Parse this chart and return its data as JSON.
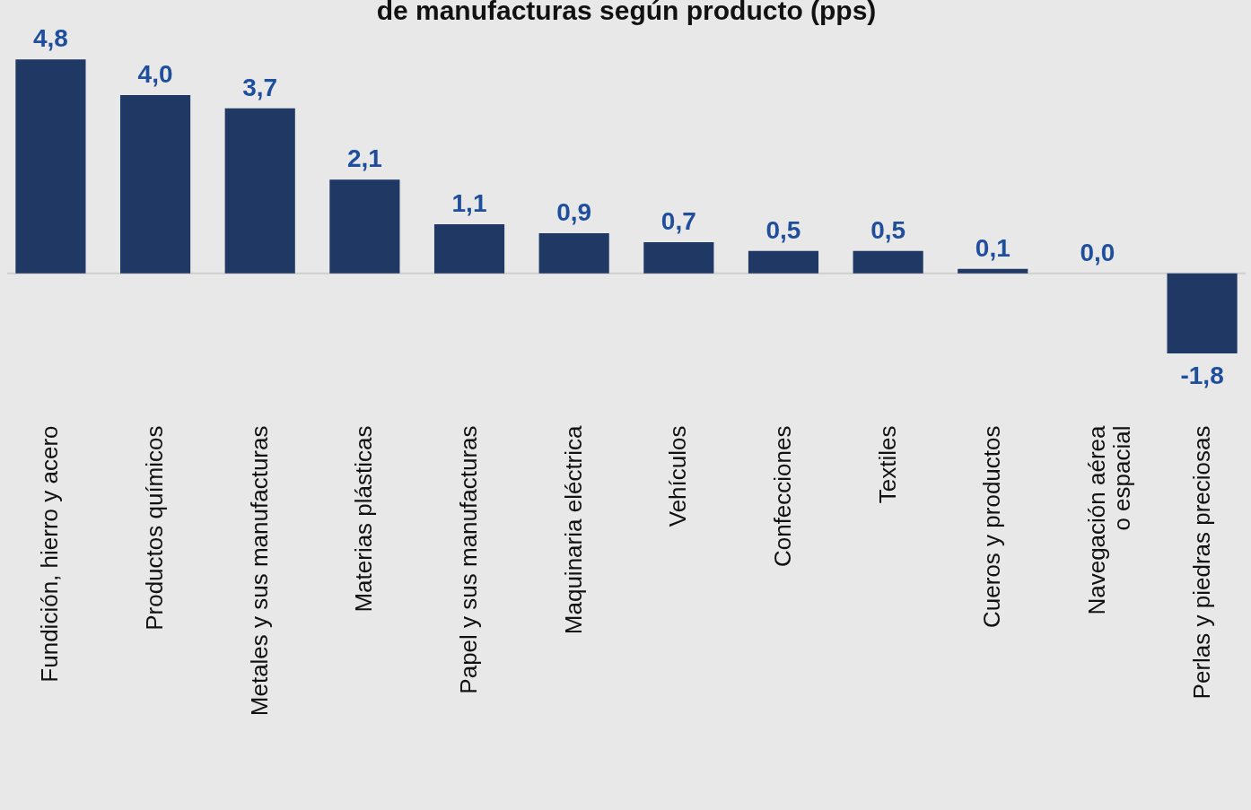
{
  "chart_data": {
    "type": "bar",
    "title": "de manufacturas según producto (pps)",
    "categories": [
      "Fundición, hierro y acero",
      "Productos químicos",
      "Metales y sus manufacturas",
      "Materias plásticas",
      "Papel y sus manufacturas",
      "Maquinaria eléctrica",
      "Vehículos",
      "Confecciones",
      "Textiles",
      "Cueros y productos",
      "Navegación aérea o espacial",
      "Perlas y piedras preciosas"
    ],
    "values": [
      4.8,
      4.0,
      3.7,
      2.1,
      1.1,
      0.9,
      0.7,
      0.5,
      0.5,
      0.1,
      0.0,
      -1.8
    ],
    "value_labels": [
      "4,8",
      "4,0",
      "3,7",
      "2,1",
      "1,1",
      "0,9",
      "0,7",
      "0,5",
      "0,5",
      "0,1",
      "0,0",
      "-1,8"
    ],
    "color": "#1f3864",
    "grid": false
  }
}
